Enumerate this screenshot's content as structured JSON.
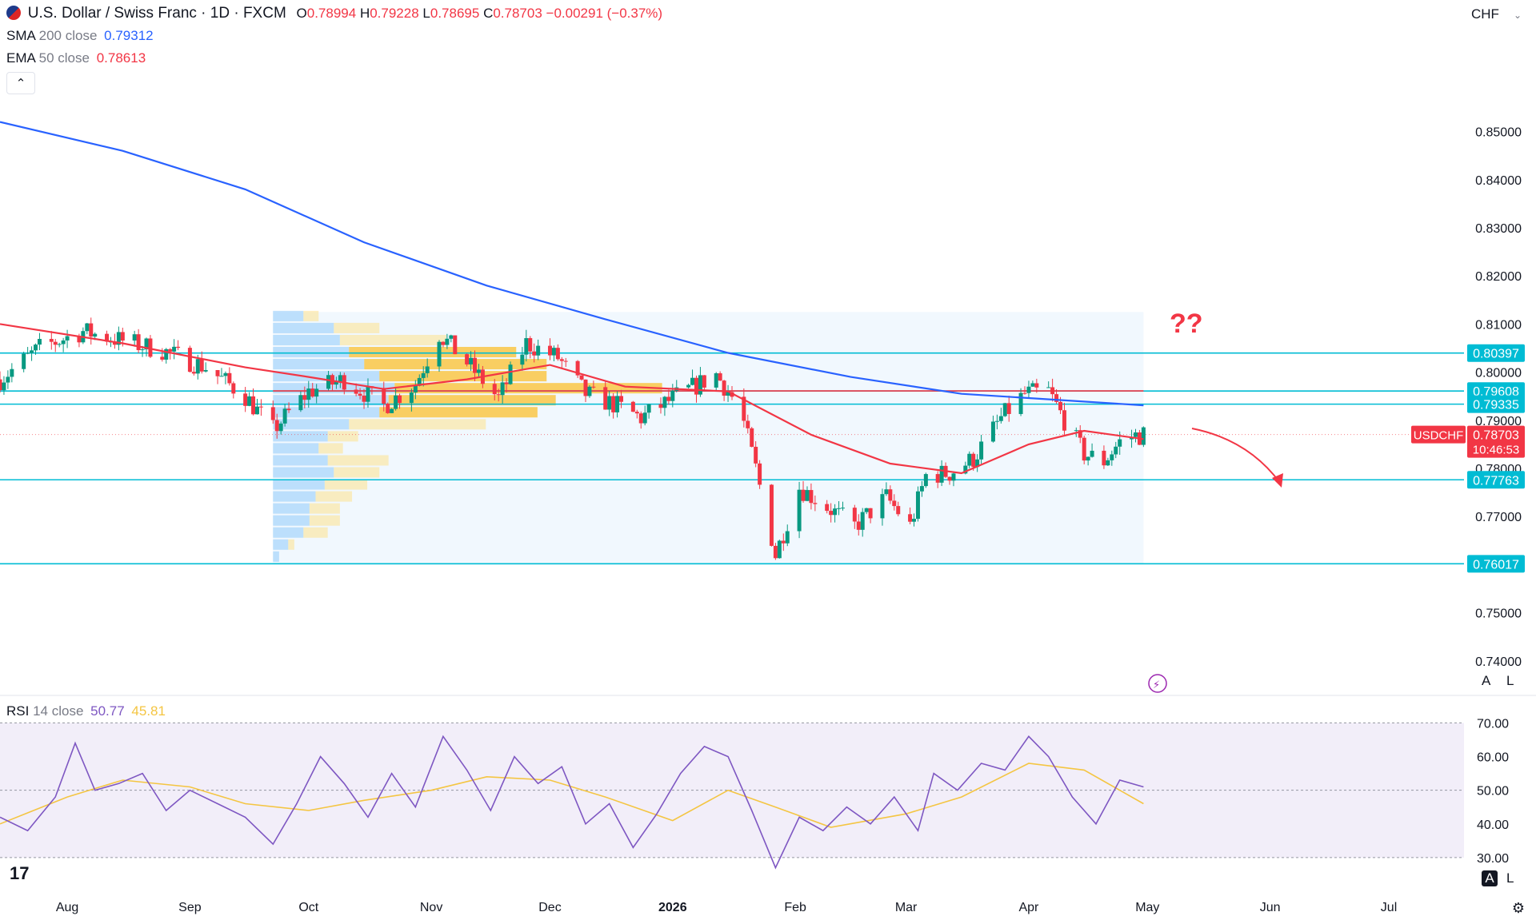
{
  "header": {
    "symbol_title": "U.S. Dollar / Swiss Franc · 1D · FXCM",
    "o_label": "O",
    "o_value": "0.78994",
    "h_label": "H",
    "h_value": "0.79228",
    "l_label": "L",
    "l_value": "0.78695",
    "c_label": "C",
    "c_value": "0.78703",
    "change": "−0.00291 (−0.37%)",
    "currency": "CHF"
  },
  "indicators": {
    "sma": {
      "name": "SMA",
      "params": "200 close",
      "value": "0.79312",
      "color": "#2962ff"
    },
    "ema": {
      "name": "EMA",
      "params": "50 close",
      "value": "0.78613",
      "color": "#f23645"
    },
    "rsi": {
      "name": "RSI",
      "params": "14 close",
      "value": "50.77",
      "ma_value": "45.81",
      "color": "#7e57c2",
      "ma_color": "#f4c542"
    }
  },
  "buttons": {
    "collapse": "⌃",
    "auto": "A",
    "log": "L",
    "auto_rsi": "A",
    "log_rsi": "L",
    "settings": "⚙",
    "logo": "17"
  },
  "chart_data": {
    "type": "candlestick",
    "symbol": "USDCHF",
    "timeframe": "1D",
    "y_ticks": [
      "0.85000",
      "0.84000",
      "0.83000",
      "0.82000",
      "0.81000",
      "0.80000",
      "0.79000",
      "0.78000",
      "0.77000",
      "0.76000",
      "0.75000",
      "0.74000"
    ],
    "ylim": [
      0.7378,
      0.8624
    ],
    "x_ticks": [
      {
        "label": "Aug",
        "date": "2025-08-01"
      },
      {
        "label": "Sep",
        "date": "2025-09-01"
      },
      {
        "label": "Oct",
        "date": "2025-10-01"
      },
      {
        "label": "Nov",
        "date": "2025-11-01"
      },
      {
        "label": "Dec",
        "date": "2025-12-01"
      },
      {
        "label": "2026",
        "date": "2026-01-01"
      },
      {
        "label": "Feb",
        "date": "2026-02-01"
      },
      {
        "label": "Mar",
        "date": "2026-03-01"
      },
      {
        "label": "Apr",
        "date": "2026-04-01"
      },
      {
        "label": "May",
        "date": "2026-05-01"
      },
      {
        "label": "Jun",
        "date": "2026-06-01"
      },
      {
        "label": "Jul",
        "date": "2026-07-01"
      }
    ],
    "date_range": [
      "2025-07-15",
      "2026-04-30"
    ],
    "close_path": [
      [
        "2025-07-15",
        0.7985
      ],
      [
        "2025-07-25",
        0.805
      ],
      [
        "2025-08-05",
        0.8085
      ],
      [
        "2025-08-15",
        0.8065
      ],
      [
        "2025-08-25",
        0.8045
      ],
      [
        "2025-09-05",
        0.801
      ],
      [
        "2025-09-15",
        0.795
      ],
      [
        "2025-09-22",
        0.788
      ],
      [
        "2025-10-01",
        0.796
      ],
      [
        "2025-10-10",
        0.7985
      ],
      [
        "2025-10-20",
        0.793
      ],
      [
        "2025-10-28",
        0.7975
      ],
      [
        "2025-11-03",
        0.808
      ],
      [
        "2025-11-10",
        0.802
      ],
      [
        "2025-11-18",
        0.7945
      ],
      [
        "2025-11-25",
        0.806
      ],
      [
        "2025-12-03",
        0.803
      ],
      [
        "2025-12-10",
        0.7955
      ],
      [
        "2025-12-18",
        0.793
      ],
      [
        "2025-12-24",
        0.7905
      ],
      [
        "2026-01-02",
        0.795
      ],
      [
        "2026-01-12",
        0.7995
      ],
      [
        "2026-01-18",
        0.7925
      ],
      [
        "2026-01-22",
        0.78
      ],
      [
        "2026-01-27",
        0.762
      ],
      [
        "2026-02-02",
        0.776
      ],
      [
        "2026-02-09",
        0.772
      ],
      [
        "2026-02-16",
        0.768
      ],
      [
        "2026-02-24",
        0.774
      ],
      [
        "2026-03-02",
        0.768
      ],
      [
        "2026-03-06",
        0.7785
      ],
      [
        "2026-03-12",
        0.779
      ],
      [
        "2026-03-18",
        0.782
      ],
      [
        "2026-03-25",
        0.7905
      ],
      [
        "2026-03-31",
        0.7955
      ],
      [
        "2026-04-06",
        0.796
      ],
      [
        "2026-04-10",
        0.79
      ],
      [
        "2026-04-15",
        0.783
      ],
      [
        "2026-04-20",
        0.7815
      ],
      [
        "2026-04-25",
        0.7865
      ],
      [
        "2026-04-30",
        0.787
      ]
    ],
    "series": [
      {
        "name": "SMA 200 close",
        "color": "#2962ff",
        "points": [
          [
            "2025-07-15",
            0.852
          ],
          [
            "2025-08-15",
            0.846
          ],
          [
            "2025-09-15",
            0.838
          ],
          [
            "2025-10-15",
            0.827
          ],
          [
            "2025-11-15",
            0.818
          ],
          [
            "2025-12-15",
            0.811
          ],
          [
            "2026-01-15",
            0.804
          ],
          [
            "2026-02-15",
            0.799
          ],
          [
            "2026-03-15",
            0.7955
          ],
          [
            "2026-04-30",
            0.7931
          ]
        ]
      },
      {
        "name": "EMA 50 close",
        "color": "#f23645",
        "points": [
          [
            "2025-07-15",
            0.81
          ],
          [
            "2025-08-15",
            0.806
          ],
          [
            "2025-09-15",
            0.801
          ],
          [
            "2025-10-01",
            0.799
          ],
          [
            "2025-10-20",
            0.7965
          ],
          [
            "2025-11-10",
            0.7985
          ],
          [
            "2025-12-01",
            0.8015
          ],
          [
            "2025-12-20",
            0.797
          ],
          [
            "2026-01-15",
            0.796
          ],
          [
            "2026-02-05",
            0.787
          ],
          [
            "2026-02-25",
            0.781
          ],
          [
            "2026-03-15",
            0.779
          ],
          [
            "2026-04-01",
            0.785
          ],
          [
            "2026-04-15",
            0.7878
          ],
          [
            "2026-04-30",
            0.7861
          ]
        ]
      }
    ],
    "horizontal_levels": [
      {
        "value": 0.80397,
        "label": "0.80397",
        "color": "#00bcd4"
      },
      {
        "value": 0.79608,
        "label": "0.79608",
        "color": "#00bcd4"
      },
      {
        "value": 0.79335,
        "label": "0.79335",
        "color": "#00bcd4"
      },
      {
        "value": 0.77763,
        "label": "0.77763",
        "color": "#00bcd4"
      },
      {
        "value": 0.76017,
        "label": "0.76017",
        "color": "#00bcd4"
      }
    ],
    "poc_level": {
      "value": 0.7961,
      "color": "#f23645"
    },
    "current_price": {
      "symbol": "USDCHF",
      "value": "0.78703",
      "countdown": "10:46:53",
      "color": "#f23645"
    },
    "annotation": {
      "text": "??",
      "color": "#f23645"
    },
    "volume_profile": {
      "date_start": "2025-09-22",
      "date_end": "2026-04-30",
      "price_top": 0.8125,
      "price_bottom": 0.7601,
      "rows": [
        {
          "price": 0.8115,
          "up": 0.1,
          "down": 0.05
        },
        {
          "price": 0.809,
          "up": 0.2,
          "down": 0.15
        },
        {
          "price": 0.8065,
          "up": 0.22,
          "down": 0.35
        },
        {
          "price": 0.804,
          "up": 0.25,
          "down": 0.55
        },
        {
          "price": 0.8015,
          "up": 0.3,
          "down": 0.6
        },
        {
          "price": 0.799,
          "up": 0.35,
          "down": 0.55
        },
        {
          "price": 0.7965,
          "up": 0.4,
          "down": 0.88
        },
        {
          "price": 0.794,
          "up": 0.38,
          "down": 0.55
        },
        {
          "price": 0.7915,
          "up": 0.35,
          "down": 0.52
        },
        {
          "price": 0.789,
          "up": 0.25,
          "down": 0.45
        },
        {
          "price": 0.7865,
          "up": 0.18,
          "down": 0.1
        },
        {
          "price": 0.784,
          "up": 0.15,
          "down": 0.08
        },
        {
          "price": 0.7815,
          "up": 0.18,
          "down": 0.2
        },
        {
          "price": 0.779,
          "up": 0.2,
          "down": 0.15
        },
        {
          "price": 0.7765,
          "up": 0.17,
          "down": 0.14
        },
        {
          "price": 0.774,
          "up": 0.14,
          "down": 0.12
        },
        {
          "price": 0.7715,
          "up": 0.12,
          "down": 0.1
        },
        {
          "price": 0.769,
          "up": 0.12,
          "down": 0.1
        },
        {
          "price": 0.7665,
          "up": 0.1,
          "down": 0.08
        },
        {
          "price": 0.764,
          "up": 0.05,
          "down": 0.02
        },
        {
          "price": 0.7615,
          "up": 0.02,
          "down": 0.0
        }
      ]
    },
    "rsi": {
      "y_ticks": [
        "70.00",
        "60.00",
        "50.00",
        "40.00",
        "30.00"
      ],
      "ylim": [
        25,
        72
      ],
      "band": [
        30,
        70
      ],
      "rsi_points": [
        [
          "2025-07-15",
          42
        ],
        [
          "2025-07-22",
          38
        ],
        [
          "2025-07-29",
          48
        ],
        [
          "2025-08-03",
          64
        ],
        [
          "2025-08-08",
          50
        ],
        [
          "2025-08-14",
          52
        ],
        [
          "2025-08-20",
          55
        ],
        [
          "2025-08-26",
          44
        ],
        [
          "2025-09-01",
          50
        ],
        [
          "2025-09-08",
          46
        ],
        [
          "2025-09-15",
          42
        ],
        [
          "2025-09-22",
          34
        ],
        [
          "2025-09-28",
          46
        ],
        [
          "2025-10-04",
          60
        ],
        [
          "2025-10-10",
          52
        ],
        [
          "2025-10-16",
          42
        ],
        [
          "2025-10-22",
          55
        ],
        [
          "2025-10-28",
          45
        ],
        [
          "2025-11-04",
          66
        ],
        [
          "2025-11-10",
          56
        ],
        [
          "2025-11-16",
          44
        ],
        [
          "2025-11-22",
          60
        ],
        [
          "2025-11-28",
          52
        ],
        [
          "2025-12-04",
          57
        ],
        [
          "2025-12-10",
          40
        ],
        [
          "2025-12-16",
          46
        ],
        [
          "2025-12-22",
          33
        ],
        [
          "2025-12-28",
          43
        ],
        [
          "2026-01-03",
          55
        ],
        [
          "2026-01-09",
          63
        ],
        [
          "2026-01-15",
          60
        ],
        [
          "2026-01-21",
          44
        ],
        [
          "2026-01-27",
          27
        ],
        [
          "2026-02-02",
          42
        ],
        [
          "2026-02-08",
          38
        ],
        [
          "2026-02-14",
          45
        ],
        [
          "2026-02-20",
          40
        ],
        [
          "2026-02-26",
          48
        ],
        [
          "2026-03-04",
          38
        ],
        [
          "2026-03-08",
          55
        ],
        [
          "2026-03-14",
          50
        ],
        [
          "2026-03-20",
          58
        ],
        [
          "2026-03-26",
          56
        ],
        [
          "2026-04-01",
          66
        ],
        [
          "2026-04-06",
          60
        ],
        [
          "2026-04-12",
          48
        ],
        [
          "2026-04-18",
          40
        ],
        [
          "2026-04-24",
          53
        ],
        [
          "2026-04-30",
          51
        ]
      ],
      "ma_points": [
        [
          "2025-07-15",
          40
        ],
        [
          "2025-08-01",
          48
        ],
        [
          "2025-08-15",
          53
        ],
        [
          "2025-09-01",
          51
        ],
        [
          "2025-09-15",
          46
        ],
        [
          "2025-10-01",
          44
        ],
        [
          "2025-10-15",
          47
        ],
        [
          "2025-11-01",
          50
        ],
        [
          "2025-11-15",
          54
        ],
        [
          "2025-12-01",
          53
        ],
        [
          "2025-12-15",
          48
        ],
        [
          "2026-01-01",
          41
        ],
        [
          "2026-01-15",
          50
        ],
        [
          "2026-01-27",
          45
        ],
        [
          "2026-02-10",
          39
        ],
        [
          "2026-03-01",
          43
        ],
        [
          "2026-03-15",
          48
        ],
        [
          "2026-04-01",
          58
        ],
        [
          "2026-04-15",
          56
        ],
        [
          "2026-04-30",
          46
        ]
      ]
    }
  }
}
